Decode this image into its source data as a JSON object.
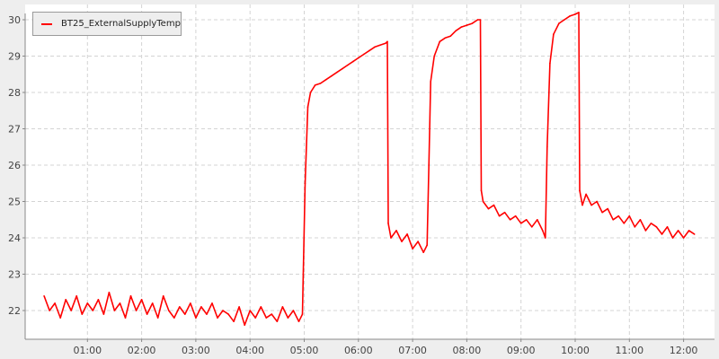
{
  "chart_data": {
    "type": "line",
    "title": "",
    "xlabel": "",
    "ylabel": "",
    "ylim": [
      21.2,
      30.4
    ],
    "xlim": [
      "00:00",
      "12:35"
    ],
    "grid": true,
    "legend_position": "top-left",
    "y_ticks": [
      "22",
      "23",
      "24",
      "25",
      "26",
      "27",
      "28",
      "29",
      "30"
    ],
    "x_ticks": [
      "01:00",
      "02:00",
      "03:00",
      "04:00",
      "05:00",
      "06:00",
      "07:00",
      "08:00",
      "09:00",
      "10:00",
      "11:00",
      "12:00"
    ],
    "series": [
      {
        "name": "BT25_ExternalSupplyTemp",
        "color": "#ff0000",
        "x": [
          "00:12",
          "00:18",
          "00:24",
          "00:30",
          "00:36",
          "00:42",
          "00:48",
          "00:54",
          "01:00",
          "01:06",
          "01:12",
          "01:18",
          "01:24",
          "01:30",
          "01:36",
          "01:42",
          "01:48",
          "01:54",
          "02:00",
          "02:06",
          "02:12",
          "02:18",
          "02:24",
          "02:30",
          "02:36",
          "02:42",
          "02:48",
          "02:54",
          "03:00",
          "03:06",
          "03:12",
          "03:18",
          "03:24",
          "03:30",
          "03:36",
          "03:42",
          "03:48",
          "03:54",
          "04:00",
          "04:06",
          "04:12",
          "04:18",
          "04:24",
          "04:30",
          "04:36",
          "04:42",
          "04:48",
          "04:54",
          "04:58",
          "05:01",
          "05:04",
          "05:07",
          "05:12",
          "05:18",
          "05:24",
          "05:30",
          "05:36",
          "05:42",
          "05:48",
          "05:54",
          "06:00",
          "06:06",
          "06:12",
          "06:18",
          "06:24",
          "06:30",
          "06:32",
          "06:33",
          "06:36",
          "06:42",
          "06:48",
          "06:54",
          "07:00",
          "07:06",
          "07:12",
          "07:16",
          "07:18",
          "07:20",
          "07:24",
          "07:30",
          "07:36",
          "07:42",
          "07:48",
          "07:54",
          "08:00",
          "08:06",
          "08:12",
          "08:15",
          "08:16",
          "08:18",
          "08:24",
          "08:30",
          "08:36",
          "08:42",
          "08:48",
          "08:54",
          "09:00",
          "09:06",
          "09:12",
          "09:18",
          "09:24",
          "09:27",
          "09:29",
          "09:32",
          "09:36",
          "09:42",
          "09:48",
          "09:54",
          "10:00",
          "10:04",
          "10:05",
          "10:08",
          "10:12",
          "10:18",
          "10:24",
          "10:30",
          "10:36",
          "10:42",
          "10:48",
          "10:54",
          "11:00",
          "11:06",
          "11:12",
          "11:18",
          "11:24",
          "11:30",
          "11:36",
          "11:42",
          "11:48",
          "11:54",
          "12:00",
          "12:06",
          "12:12"
        ],
        "y": [
          22.4,
          22.0,
          22.2,
          21.8,
          22.3,
          22.0,
          22.4,
          21.9,
          22.2,
          22.0,
          22.3,
          21.9,
          22.5,
          22.0,
          22.2,
          21.8,
          22.4,
          22.0,
          22.3,
          21.9,
          22.2,
          21.8,
          22.4,
          22.0,
          21.8,
          22.1,
          21.9,
          22.2,
          21.8,
          22.1,
          21.9,
          22.2,
          21.8,
          22.0,
          21.9,
          21.7,
          22.1,
          21.6,
          22.0,
          21.8,
          22.1,
          21.8,
          21.9,
          21.7,
          22.1,
          21.8,
          22.0,
          21.7,
          21.9,
          25.5,
          27.6,
          28.0,
          28.2,
          28.25,
          28.35,
          28.45,
          28.55,
          28.65,
          28.75,
          28.85,
          28.95,
          29.05,
          29.15,
          29.25,
          29.3,
          29.35,
          29.4,
          24.4,
          24.0,
          24.2,
          23.9,
          24.1,
          23.7,
          23.9,
          23.6,
          23.8,
          26.0,
          28.3,
          29.0,
          29.4,
          29.5,
          29.55,
          29.7,
          29.8,
          29.85,
          29.9,
          30.0,
          30.0,
          25.3,
          25.0,
          24.8,
          24.9,
          24.6,
          24.7,
          24.5,
          24.6,
          24.4,
          24.5,
          24.3,
          24.5,
          24.2,
          24.0,
          26.5,
          28.8,
          29.6,
          29.9,
          30.0,
          30.1,
          30.15,
          30.2,
          25.3,
          24.9,
          25.2,
          24.9,
          25.0,
          24.7,
          24.8,
          24.5,
          24.6,
          24.4,
          24.6,
          24.3,
          24.5,
          24.2,
          24.4,
          24.3,
          24.1,
          24.3,
          24.0,
          24.2,
          24.0,
          24.2,
          24.1
        ]
      }
    ]
  }
}
